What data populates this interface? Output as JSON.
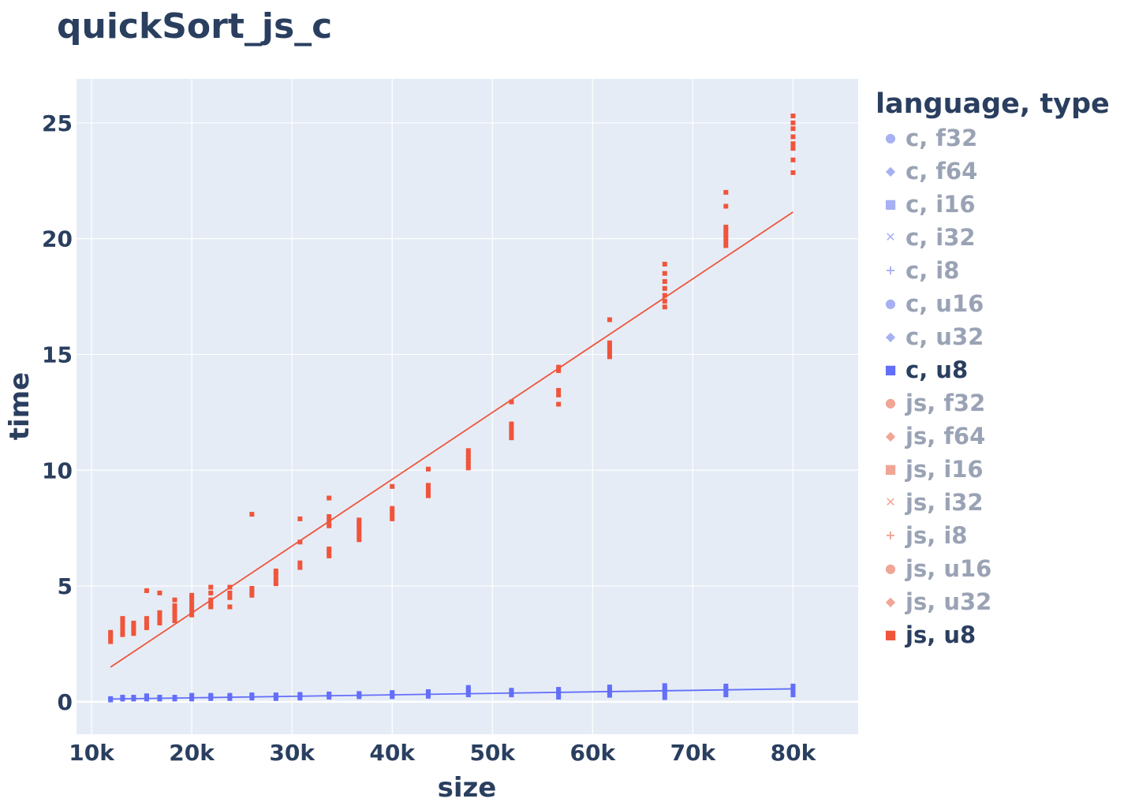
{
  "chart_data": {
    "type": "scatter",
    "title": "quickSort_js_c",
    "xlabel": "size",
    "ylabel": "time",
    "xlim": [
      8500,
      86500
    ],
    "ylim": [
      -1.4,
      26.9
    ],
    "x_ticks": [
      10000,
      20000,
      30000,
      40000,
      50000,
      60000,
      70000,
      80000
    ],
    "x_tick_labels": [
      "10k",
      "20k",
      "30k",
      "40k",
      "50k",
      "60k",
      "70k",
      "80k"
    ],
    "y_ticks": [
      0,
      5,
      10,
      15,
      20,
      25
    ],
    "y_tick_labels": [
      "0",
      "5",
      "10",
      "15",
      "20",
      "25"
    ],
    "grid": true,
    "legend_title": "language, type",
    "legend_position": "right",
    "legend": [
      {
        "label": "c, f32",
        "symbol": "●",
        "color": "#a7b0f2",
        "visible": false
      },
      {
        "label": "c, f64",
        "symbol": "◆",
        "color": "#a7b0f2",
        "visible": false
      },
      {
        "label": "c, i16",
        "symbol": "■",
        "color": "#a7b0f2",
        "visible": false
      },
      {
        "label": "c, i32",
        "symbol": "✕",
        "color": "#a7b0f2",
        "visible": false
      },
      {
        "label": "c, i8",
        "symbol": "+",
        "color": "#a7b0f2",
        "visible": false
      },
      {
        "label": "c, u16",
        "symbol": "●",
        "color": "#a7b0f2",
        "visible": false
      },
      {
        "label": "c, u32",
        "symbol": "◆",
        "color": "#a7b0f2",
        "visible": false
      },
      {
        "label": "c, u8",
        "symbol": "■",
        "color": "#636efa",
        "visible": true
      },
      {
        "label": "js, f32",
        "symbol": "●",
        "color": "#f0a595",
        "visible": false
      },
      {
        "label": "js, f64",
        "symbol": "◆",
        "color": "#f0a595",
        "visible": false
      },
      {
        "label": "js, i16",
        "symbol": "■",
        "color": "#f0a595",
        "visible": false
      },
      {
        "label": "js, i32",
        "symbol": "✕",
        "color": "#f0a595",
        "visible": false
      },
      {
        "label": "js, i8",
        "symbol": "+",
        "color": "#f0a595",
        "visible": false
      },
      {
        "label": "js, u16",
        "symbol": "●",
        "color": "#f0a595",
        "visible": false
      },
      {
        "label": "js, u32",
        "symbol": "◆",
        "color": "#f0a595",
        "visible": false
      },
      {
        "label": "js, u8",
        "symbol": "■",
        "color": "#ef553b",
        "visible": true
      }
    ],
    "series": [
      {
        "language": "c",
        "type": "u8",
        "color": "#636efa",
        "points": [
          [
            11900,
            0.08
          ],
          [
            11900,
            0.14
          ],
          [
            13100,
            0.12
          ],
          [
            13100,
            0.2
          ],
          [
            14200,
            0.12
          ],
          [
            14200,
            0.2
          ],
          [
            15500,
            0.12
          ],
          [
            15500,
            0.18
          ],
          [
            15500,
            0.26
          ],
          [
            16800,
            0.12
          ],
          [
            16800,
            0.2
          ],
          [
            18300,
            0.12
          ],
          [
            18300,
            0.2
          ],
          [
            20000,
            0.12
          ],
          [
            20000,
            0.2
          ],
          [
            20000,
            0.28
          ],
          [
            21900,
            0.14
          ],
          [
            21900,
            0.22
          ],
          [
            21900,
            0.28
          ],
          [
            23800,
            0.14
          ],
          [
            23800,
            0.22
          ],
          [
            23800,
            0.28
          ],
          [
            26000,
            0.16
          ],
          [
            26000,
            0.24
          ],
          [
            26000,
            0.3
          ],
          [
            28400,
            0.14
          ],
          [
            28400,
            0.22
          ],
          [
            28400,
            0.3
          ],
          [
            30800,
            0.16
          ],
          [
            30800,
            0.24
          ],
          [
            30800,
            0.32
          ],
          [
            33700,
            0.2
          ],
          [
            33700,
            0.28
          ],
          [
            33700,
            0.34
          ],
          [
            36700,
            0.22
          ],
          [
            36700,
            0.3
          ],
          [
            36700,
            0.36
          ],
          [
            40000,
            0.22
          ],
          [
            40000,
            0.3
          ],
          [
            40000,
            0.4
          ],
          [
            43600,
            0.24
          ],
          [
            43600,
            0.34
          ],
          [
            43600,
            0.44
          ],
          [
            47600,
            0.3
          ],
          [
            47600,
            0.4
          ],
          [
            47600,
            0.52
          ],
          [
            47600,
            0.62
          ],
          [
            51900,
            0.3
          ],
          [
            51900,
            0.4
          ],
          [
            51900,
            0.5
          ],
          [
            56600,
            0.2
          ],
          [
            56600,
            0.32
          ],
          [
            56600,
            0.44
          ],
          [
            56600,
            0.54
          ],
          [
            61700,
            0.28
          ],
          [
            61700,
            0.4
          ],
          [
            61700,
            0.52
          ],
          [
            61700,
            0.64
          ],
          [
            67200,
            0.18
          ],
          [
            67200,
            0.32
          ],
          [
            67200,
            0.46
          ],
          [
            67200,
            0.58
          ],
          [
            67200,
            0.7
          ],
          [
            73300,
            0.3
          ],
          [
            73300,
            0.44
          ],
          [
            73300,
            0.56
          ],
          [
            73300,
            0.68
          ],
          [
            80000,
            0.3
          ],
          [
            80000,
            0.44
          ],
          [
            80000,
            0.56
          ],
          [
            80000,
            0.68
          ]
        ],
        "fit": [
          [
            11900,
            0.12
          ],
          [
            80000,
            0.56
          ]
        ]
      },
      {
        "language": "js",
        "type": "u8",
        "color": "#ef553b",
        "points": [
          [
            11900,
            2.6
          ],
          [
            11900,
            2.75
          ],
          [
            11900,
            2.9
          ],
          [
            11900,
            3.0
          ],
          [
            13100,
            2.9
          ],
          [
            13100,
            3.05
          ],
          [
            13100,
            3.25
          ],
          [
            13100,
            3.45
          ],
          [
            13100,
            3.6
          ],
          [
            14200,
            2.95
          ],
          [
            14200,
            3.1
          ],
          [
            14200,
            3.25
          ],
          [
            14200,
            3.4
          ],
          [
            15500,
            3.2
          ],
          [
            15500,
            3.4
          ],
          [
            15500,
            3.6
          ],
          [
            15500,
            4.8
          ],
          [
            16800,
            3.4
          ],
          [
            16800,
            3.55
          ],
          [
            16800,
            3.7
          ],
          [
            16800,
            3.85
          ],
          [
            16800,
            4.7
          ],
          [
            18300,
            3.5
          ],
          [
            18300,
            3.7
          ],
          [
            18300,
            3.85
          ],
          [
            18300,
            4.0
          ],
          [
            18300,
            4.15
          ],
          [
            18300,
            4.4
          ],
          [
            20000,
            3.75
          ],
          [
            20000,
            3.9
          ],
          [
            20000,
            4.05
          ],
          [
            20000,
            4.25
          ],
          [
            20000,
            4.45
          ],
          [
            20000,
            4.6
          ],
          [
            21900,
            4.1
          ],
          [
            21900,
            4.25
          ],
          [
            21900,
            4.4
          ],
          [
            21900,
            4.7
          ],
          [
            21900,
            4.95
          ],
          [
            23800,
            4.1
          ],
          [
            23800,
            4.5
          ],
          [
            23800,
            4.7
          ],
          [
            23800,
            4.95
          ],
          [
            26000,
            4.6
          ],
          [
            26000,
            4.75
          ],
          [
            26000,
            4.9
          ],
          [
            26000,
            8.1
          ],
          [
            28400,
            5.1
          ],
          [
            28400,
            5.3
          ],
          [
            28400,
            5.5
          ],
          [
            28400,
            5.65
          ],
          [
            30800,
            5.8
          ],
          [
            30800,
            6.0
          ],
          [
            30800,
            6.9
          ],
          [
            30800,
            7.9
          ],
          [
            33700,
            6.3
          ],
          [
            33700,
            6.45
          ],
          [
            33700,
            6.6
          ],
          [
            33700,
            7.6
          ],
          [
            33700,
            7.8
          ],
          [
            33700,
            8.0
          ],
          [
            33700,
            8.8
          ],
          [
            36700,
            7.0
          ],
          [
            36700,
            7.15
          ],
          [
            36700,
            7.3
          ],
          [
            36700,
            7.45
          ],
          [
            36700,
            7.6
          ],
          [
            36700,
            7.75
          ],
          [
            36700,
            7.85
          ],
          [
            40000,
            7.9
          ],
          [
            40000,
            8.05
          ],
          [
            40000,
            8.2
          ],
          [
            40000,
            8.35
          ],
          [
            40000,
            9.3
          ],
          [
            43600,
            8.9
          ],
          [
            43600,
            9.05
          ],
          [
            43600,
            9.2
          ],
          [
            43600,
            9.35
          ],
          [
            43600,
            10.05
          ],
          [
            47600,
            10.1
          ],
          [
            47600,
            10.25
          ],
          [
            47600,
            10.4
          ],
          [
            47600,
            10.55
          ],
          [
            47600,
            10.7
          ],
          [
            47600,
            10.85
          ],
          [
            51900,
            11.4
          ],
          [
            51900,
            11.55
          ],
          [
            51900,
            11.7
          ],
          [
            51900,
            11.85
          ],
          [
            51900,
            12.0
          ],
          [
            51900,
            12.95
          ],
          [
            56600,
            12.85
          ],
          [
            56600,
            13.25
          ],
          [
            56600,
            13.45
          ],
          [
            56600,
            14.3
          ],
          [
            56600,
            14.45
          ],
          [
            61700,
            14.9
          ],
          [
            61700,
            15.05
          ],
          [
            61700,
            15.2
          ],
          [
            61700,
            15.35
          ],
          [
            61700,
            15.5
          ],
          [
            61700,
            16.5
          ],
          [
            67200,
            17.05
          ],
          [
            67200,
            17.3
          ],
          [
            67200,
            17.55
          ],
          [
            67200,
            17.85
          ],
          [
            67200,
            18.15
          ],
          [
            67200,
            18.5
          ],
          [
            67200,
            18.9
          ],
          [
            73300,
            19.7
          ],
          [
            73300,
            19.9
          ],
          [
            73300,
            20.05
          ],
          [
            73300,
            20.2
          ],
          [
            73300,
            20.35
          ],
          [
            73300,
            20.5
          ],
          [
            73300,
            21.4
          ],
          [
            73300,
            22.0
          ],
          [
            80000,
            22.85
          ],
          [
            80000,
            23.4
          ],
          [
            80000,
            23.9
          ],
          [
            80000,
            24.1
          ],
          [
            80000,
            24.4
          ],
          [
            80000,
            24.75
          ],
          [
            80000,
            25.0
          ],
          [
            80000,
            25.3
          ]
        ],
        "fit": [
          [
            11900,
            1.5
          ],
          [
            80000,
            21.15
          ]
        ]
      }
    ]
  }
}
